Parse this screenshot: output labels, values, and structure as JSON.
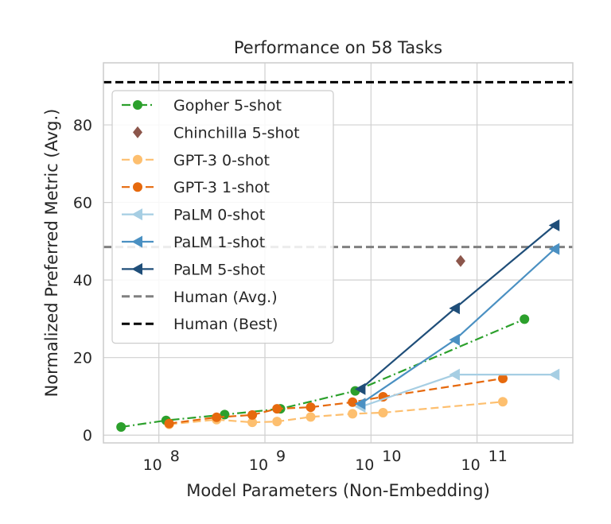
{
  "chart_data": {
    "type": "line",
    "title": "Performance on 58 Tasks",
    "xlabel": "Model Parameters (Non-Embedding)",
    "ylabel": "Normalized Preferred Metric (Avg.)",
    "xscale": "log",
    "xlim": [
      30000000.0,
      800000000000.0
    ],
    "ylim": [
      -2,
      96
    ],
    "xticks": [
      {
        "value": 100000000.0,
        "base": "10",
        "exp": "8"
      },
      {
        "value": 1000000000.0,
        "base": "10",
        "exp": "9"
      },
      {
        "value": 10000000000.0,
        "base": "10",
        "exp": "10"
      },
      {
        "value": 100000000000.0,
        "base": "10",
        "exp": "11"
      }
    ],
    "yticks": [
      0,
      20,
      40,
      60,
      80
    ],
    "grid": true,
    "legend_position": "upper-left",
    "series": [
      {
        "name": "Gopher 5-shot",
        "color": "#2ca02c",
        "dash": "dashdot",
        "marker": "circle",
        "x": [
          44000000.0,
          117000000.0,
          417000000.0,
          1400000000.0,
          7100000000.0,
          280000000000.0
        ],
        "y": [
          2.1,
          3.8,
          5.3,
          6.8,
          11.4,
          29.9
        ]
      },
      {
        "name": "Chinchilla 5-shot",
        "color": "#8c564b",
        "dash": "none",
        "marker": "diamond",
        "x": [
          70000000000.0
        ],
        "y": [
          44.9
        ]
      },
      {
        "name": "GPT-3 0-shot",
        "color": "#fdbf6f",
        "dash": "dashed",
        "marker": "circle",
        "x": [
          125000000.0,
          350000000.0,
          760000000.0,
          1300000000.0,
          2700000000.0,
          6700000000.0,
          13000000000.0,
          175000000000.0
        ],
        "y": [
          2.8,
          4.0,
          3.3,
          3.5,
          4.7,
          5.5,
          5.8,
          8.6
        ]
      },
      {
        "name": "GPT-3 1-shot",
        "color": "#e6690d",
        "dash": "dashed",
        "marker": "circle",
        "x": [
          125000000.0,
          350000000.0,
          760000000.0,
          1300000000.0,
          2700000000.0,
          6700000000.0,
          13000000000.0,
          175000000000.0
        ],
        "y": [
          3.0,
          4.6,
          5.2,
          6.8,
          7.2,
          8.5,
          9.9,
          14.6
        ]
      },
      {
        "name": "PaLM 0-shot",
        "color": "#a6cee3",
        "dash": "none",
        "marker": "triangle-left",
        "x": [
          8000000000.0,
          62000000000.0,
          540000000000.0
        ],
        "y": [
          7.3,
          15.6,
          15.6
        ]
      },
      {
        "name": "PaLM 1-shot",
        "color": "#4a90c2",
        "dash": "none",
        "marker": "triangle-left",
        "x": [
          8000000000.0,
          62000000000.0,
          540000000000.0
        ],
        "y": [
          8.1,
          24.6,
          48.0
        ]
      },
      {
        "name": "PaLM 5-shot",
        "color": "#1f4e79",
        "dash": "none",
        "marker": "triangle-left",
        "x": [
          8000000000.0,
          62000000000.0,
          540000000000.0
        ],
        "y": [
          11.9,
          32.7,
          54.1
        ]
      },
      {
        "name": "Human (Avg.)",
        "color": "#808080",
        "dash": "dashed",
        "marker": "none",
        "hline": 48.5
      },
      {
        "name": "Human (Best)",
        "color": "#000000",
        "dash": "dashed",
        "marker": "none",
        "hline": 91.0
      }
    ]
  }
}
